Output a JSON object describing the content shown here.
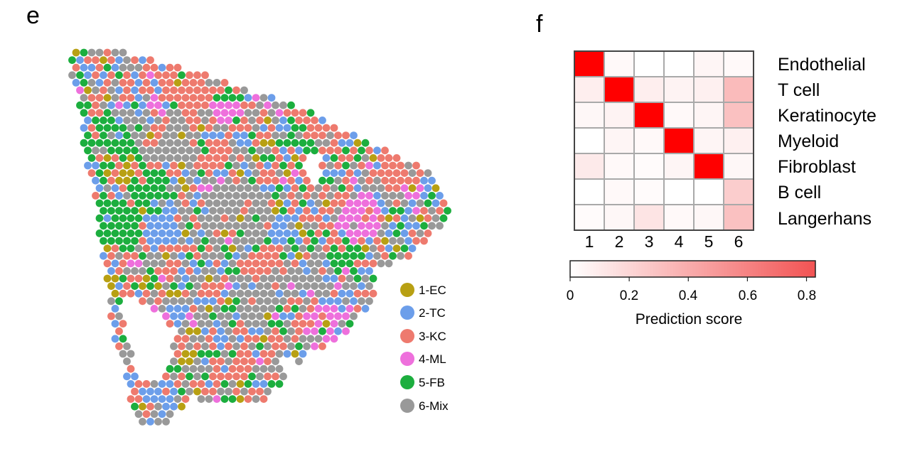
{
  "panel_e": {
    "letter": "e",
    "clusters": [
      {
        "key": "EC",
        "label": "1-EC",
        "color": "#B8A013"
      },
      {
        "key": "TC",
        "label": "2-TC",
        "color": "#6C9EEA"
      },
      {
        "key": "KC",
        "label": "3-KC",
        "color": "#EE7A6E"
      },
      {
        "key": "ML",
        "label": "4-ML",
        "color": "#EE70DC"
      },
      {
        "key": "FB",
        "label": "5-FB",
        "color": "#1CAE3E"
      },
      {
        "key": "Mix",
        "label": "6-Mix",
        "color": "#999999"
      }
    ]
  },
  "chart_data": {
    "type": "heatmap",
    "panel_letter": "f",
    "rows": [
      "Endothelial",
      "T cell",
      "Keratinocyte",
      "Myeloid",
      "Fibroblast",
      "B cell",
      "Langerhans"
    ],
    "columns": [
      "1",
      "2",
      "3",
      "4",
      "5",
      "6"
    ],
    "values": [
      [
        0.83,
        0.03,
        0.0,
        0.0,
        0.05,
        0.03
      ],
      [
        0.08,
        0.83,
        0.08,
        0.06,
        0.07,
        0.33
      ],
      [
        0.04,
        0.06,
        0.83,
        0.03,
        0.05,
        0.3
      ],
      [
        0.0,
        0.05,
        0.03,
        0.83,
        0.05,
        0.07
      ],
      [
        0.1,
        0.03,
        0.02,
        0.05,
        0.83,
        0.04
      ],
      [
        0.0,
        0.03,
        0.02,
        0.0,
        0.0,
        0.24
      ],
      [
        0.02,
        0.04,
        0.13,
        0.03,
        0.04,
        0.3
      ]
    ],
    "colorbar": {
      "label": "Prediction score",
      "ticks": [
        "0",
        "0.2",
        "0.4",
        "0.6",
        "0.8"
      ],
      "tick_values": [
        0,
        0.2,
        0.4,
        0.6,
        0.8
      ],
      "range": [
        0,
        0.83
      ],
      "low_color": "#FFFFFF",
      "high_color": "#F25353"
    }
  }
}
